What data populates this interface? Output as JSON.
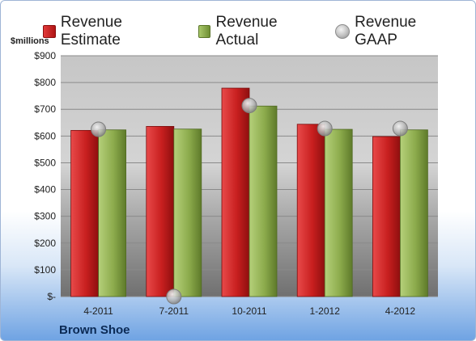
{
  "legend": {
    "estimate": "Revenue Estimate",
    "actual": "Revenue Actual",
    "gaap": "Revenue GAAP"
  },
  "unit_label": "$millions",
  "company": "Brown Shoe",
  "colors": {
    "estimate": "#c62020",
    "actual": "#8aab4a",
    "gaap": "#b5b5b5"
  },
  "chart_data": {
    "type": "bar",
    "categories": [
      "4-2011",
      "7-2011",
      "10-2011",
      "1-2012",
      "4-2012"
    ],
    "series": [
      {
        "name": "Revenue Estimate",
        "values": [
          621,
          636,
          779,
          644,
          598
        ]
      },
      {
        "name": "Revenue Actual",
        "values": [
          623,
          626,
          712,
          625,
          623
        ]
      },
      {
        "name": "Revenue GAAP",
        "values": [
          625,
          0,
          714,
          628,
          628
        ]
      }
    ],
    "ylabel": "$millions",
    "ylim": [
      0,
      900
    ],
    "yticks": [
      0,
      100,
      200,
      300,
      400,
      500,
      600,
      700,
      800,
      900
    ],
    "ytick_labels": [
      "$-",
      "$100",
      "$200",
      "$300",
      "$400",
      "$500",
      "$600",
      "$700",
      "$800",
      "$900"
    ],
    "grid": true,
    "legend_position": "top"
  }
}
